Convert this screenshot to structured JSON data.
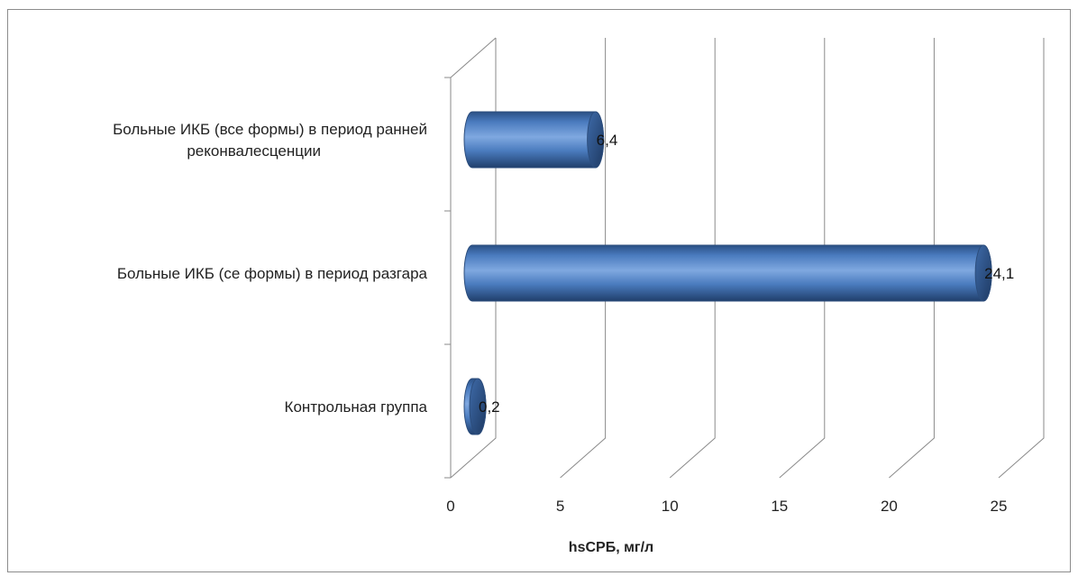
{
  "chart_data": {
    "type": "bar",
    "orientation": "horizontal",
    "style": "3d-cylinder",
    "categories": [
      "Больные ИКБ (все формы) в период ранней реконвалесценции",
      "Больные ИКБ (се формы) в период разгара",
      "Контрольная группа"
    ],
    "category_label_lines": [
      [
        "Больные ИКБ (все формы) в период ранней",
        "реконвалесценции"
      ],
      [
        "Больные ИКБ (се формы) в период разгара"
      ],
      [
        "Контрольная группа"
      ]
    ],
    "values": [
      6.4,
      24.1,
      0.2
    ],
    "data_labels": [
      "6,4",
      "24,1",
      "0,2"
    ],
    "xlabel": "hsCРБ, мг/л",
    "xlim": [
      0,
      25
    ],
    "x_ticks": [
      "0",
      "5",
      "10",
      "15",
      "20",
      "25"
    ],
    "grid": true,
    "legend": "none",
    "bar_color": "#4f81bd"
  }
}
